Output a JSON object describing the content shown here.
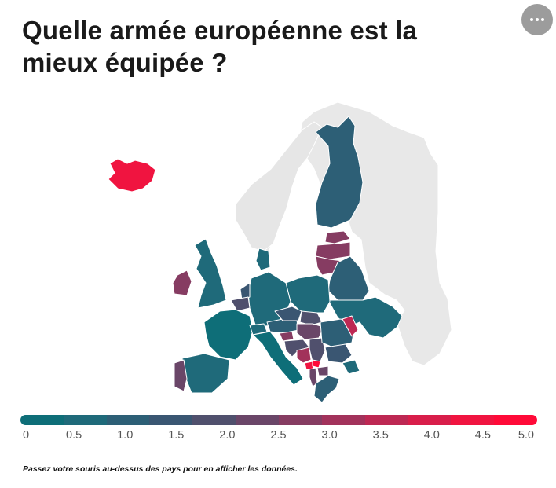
{
  "title": "Quelle armée européenne est la mieux équipée ?",
  "menu": {
    "icon": "more-horizontal-icon"
  },
  "legend": {
    "ticks": [
      "0",
      "0.5",
      "1.0",
      "1.5",
      "2.0",
      "2.5",
      "3.0",
      "3.5",
      "4.0",
      "4.5",
      "5.0"
    ],
    "range": [
      0,
      5
    ],
    "colors": [
      "#0e6e78",
      "#1f6a7a",
      "#2d5f76",
      "#3a5672",
      "#50506d",
      "#6a4668",
      "#863c62",
      "#a2325b",
      "#bd2853",
      "#d81e4a",
      "#f01440",
      "#ff0a38"
    ]
  },
  "map": {
    "countries": [
      {
        "name": "Iceland",
        "value": 4.5
      },
      {
        "name": "Finland",
        "value": 0.8
      },
      {
        "name": "Estonia",
        "value": 2.7
      },
      {
        "name": "Latvia",
        "value": 2.8
      },
      {
        "name": "Lithuania",
        "value": 2.6
      },
      {
        "name": "Belarus",
        "value": 1.1
      },
      {
        "name": "Ukraine",
        "value": 0.5
      },
      {
        "name": "Poland",
        "value": 0.3
      },
      {
        "name": "Germany",
        "value": 0.3
      },
      {
        "name": "Denmark",
        "value": 0.5
      },
      {
        "name": "Netherlands",
        "value": 1.2
      },
      {
        "name": "Belgium",
        "value": 1.6
      },
      {
        "name": "United Kingdom",
        "value": 0.6
      },
      {
        "name": "Ireland",
        "value": 2.6
      },
      {
        "name": "France",
        "value": 0.2
      },
      {
        "name": "Spain",
        "value": 0.3
      },
      {
        "name": "Portugal",
        "value": 2.3
      },
      {
        "name": "Italy",
        "value": 0.2
      },
      {
        "name": "Switzerland",
        "value": 0.4
      },
      {
        "name": "Austria",
        "value": 1.1
      },
      {
        "name": "Czech Republic",
        "value": 1.5
      },
      {
        "name": "Slovakia",
        "value": 1.8
      },
      {
        "name": "Hungary",
        "value": 2.4
      },
      {
        "name": "Romania",
        "value": 0.9
      },
      {
        "name": "Moldova",
        "value": 3.6
      },
      {
        "name": "Bulgaria",
        "value": 1.3
      },
      {
        "name": "Serbia",
        "value": 1.7
      },
      {
        "name": "Croatia",
        "value": 2.0
      },
      {
        "name": "Bosnia and Herzegovina",
        "value": 3.3
      },
      {
        "name": "Slovenia",
        "value": 2.8
      },
      {
        "name": "Montenegro",
        "value": 4.4
      },
      {
        "name": "Kosovo",
        "value": 4.8
      },
      {
        "name": "Albania",
        "value": 2.1
      },
      {
        "name": "North Macedonia",
        "value": 2.2
      },
      {
        "name": "Greece",
        "value": 0.8
      },
      {
        "name": "Turkey (Thrace)",
        "value": 0.6
      }
    ]
  },
  "note": "Passez votre souris au-dessus des pays pour en afficher les données."
}
